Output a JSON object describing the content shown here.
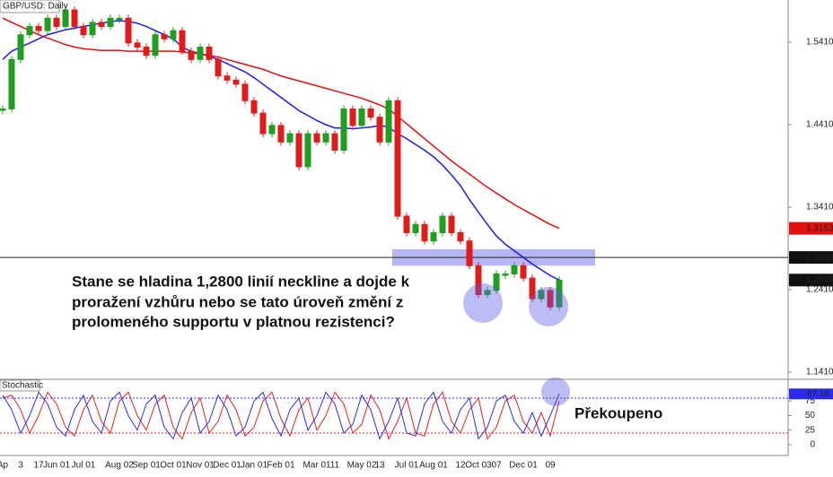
{
  "chart_data": [
    {
      "type": "candlestick",
      "title": "GBP/USD: Daily",
      "categories": [
        "Ap",
        null,
        "3",
        null,
        "17",
        null,
        "Jun 01",
        null,
        null,
        "Jul 01",
        null,
        null,
        null,
        "Aug 02",
        null,
        null,
        "Sep 01",
        null,
        null,
        "Oct 01",
        null,
        null,
        "Nov 01",
        null,
        null,
        "Dec 01",
        null,
        null,
        "Jan 01",
        null,
        null,
        "Feb 01",
        null,
        null,
        null,
        "Mar 01",
        null,
        "11",
        null,
        null,
        "May 02",
        null,
        "13",
        null,
        null,
        "Jul 01",
        null,
        null,
        "Aug 01",
        null,
        null,
        "12",
        null,
        "Oct 03",
        null,
        "07",
        null,
        null,
        "Dec 01",
        null,
        null,
        "09",
        null
      ],
      "series": [
        {
          "color": "#1f9e1f",
          "down_color": "#e01b1b",
          "values": [
            1.46,
            1.52,
            1.55,
            1.56,
            1.555,
            1.57,
            1.56,
            1.58,
            1.56,
            1.55,
            1.565,
            1.56,
            1.57,
            1.57,
            1.54,
            1.535,
            1.525,
            1.55,
            1.545,
            1.555,
            1.53,
            1.52,
            1.535,
            1.52,
            1.5,
            1.495,
            1.49,
            1.47,
            1.455,
            1.43,
            1.44,
            1.42,
            1.43,
            1.39,
            1.43,
            1.42,
            1.43,
            1.41,
            1.46,
            1.44,
            1.46,
            1.45,
            1.42,
            1.47,
            1.33,
            1.31,
            1.32,
            1.3,
            1.31,
            1.33,
            1.31,
            1.3,
            1.27,
            1.235,
            1.24,
            1.26,
            1.26,
            1.27,
            1.255,
            1.23,
            1.24,
            1.22,
            1.2526
          ]
        },
        {
          "color": "#1c1ce8",
          "values": [
            1.52,
            1.53,
            1.535,
            1.54,
            1.545,
            1.55,
            1.553,
            1.556,
            1.558,
            1.56,
            1.562,
            1.564,
            1.566,
            1.567,
            1.566,
            1.564,
            1.56,
            1.555,
            1.55,
            1.545,
            1.535,
            1.53,
            1.527,
            1.524,
            1.52,
            1.515,
            1.51,
            1.505,
            1.498,
            1.49,
            1.482,
            1.474,
            1.466,
            1.458,
            1.452,
            1.446,
            1.441,
            1.437,
            1.437,
            1.436,
            1.437,
            1.438,
            1.44,
            1.438,
            1.43,
            1.424,
            1.417,
            1.41,
            1.402,
            1.392,
            1.38,
            1.367,
            1.35,
            1.335,
            1.32,
            1.306,
            1.296,
            1.288,
            1.28,
            1.272,
            1.265,
            1.258,
            1.2526
          ]
        },
        {
          "color": "#e31010",
          "values": [
            1.57,
            1.565,
            1.56,
            1.555,
            1.55,
            1.546,
            1.542,
            1.538,
            1.535,
            1.533,
            1.532,
            1.531,
            1.531,
            1.531,
            1.53,
            1.53,
            1.53,
            1.53,
            1.53,
            1.53,
            1.529,
            1.528,
            1.527,
            1.525,
            1.523,
            1.52,
            1.517,
            1.514,
            1.511,
            1.508,
            1.504,
            1.5,
            1.497,
            1.494,
            1.491,
            1.488,
            1.485,
            1.482,
            1.479,
            1.476,
            1.473,
            1.469,
            1.465,
            1.46,
            1.451,
            1.442,
            1.433,
            1.424,
            1.415,
            1.406,
            1.397,
            1.389,
            1.381,
            1.373,
            1.365,
            1.358,
            1.351,
            1.344,
            1.338,
            1.332,
            1.326,
            1.32,
            1.3153
          ]
        }
      ],
      "ylim": [
        1.1334,
        1.5921
      ],
      "yticks": [
        {
          "value": 1.141,
          "label": "1.1410"
        },
        {
          "value": 1.241,
          "label": "1.2410"
        },
        {
          "value": 1.341,
          "label": "1.3410"
        },
        {
          "value": 1.441,
          "label": "1.4410"
        },
        {
          "value": 1.541,
          "label": "1.5410"
        }
      ],
      "neckline": {
        "value": 1.28,
        "label": "1.2800"
      },
      "zone": [
        1.27,
        1.29
      ],
      "annotation": [
        "Stane se hladina 1,2800 linií neckline a dojde k",
        "proražení vzhůru nebo se tato úroveň změní z",
        "prolomeného supportu v platnou rezistenci?"
      ]
    },
    {
      "type": "line",
      "title": "Stochastic",
      "series": [
        {
          "color": "#2b2bef",
          "values": [
            85,
            60,
            20,
            50,
            90,
            70,
            30,
            15,
            60,
            85,
            40,
            20,
            75,
            90,
            50,
            25,
            70,
            85,
            30,
            10,
            55,
            80,
            20,
            40,
            85,
            60,
            15,
            30,
            75,
            90,
            45,
            15,
            60,
            80,
            25,
            50,
            90,
            70,
            20,
            35,
            85,
            60,
            10,
            40,
            80,
            20,
            15,
            70,
            90,
            40,
            20,
            60,
            80,
            10,
            30,
            75,
            85,
            40,
            20,
            55,
            15,
            50,
            87.18
          ]
        },
        {
          "color": "#e52020",
          "values": [
            80,
            85,
            60,
            20,
            50,
            90,
            70,
            30,
            15,
            60,
            85,
            40,
            20,
            75,
            90,
            50,
            25,
            70,
            85,
            30,
            10,
            55,
            80,
            20,
            40,
            85,
            60,
            15,
            30,
            75,
            90,
            45,
            15,
            60,
            80,
            25,
            50,
            90,
            70,
            20,
            35,
            85,
            60,
            10,
            40,
            80,
            20,
            15,
            70,
            90,
            40,
            20,
            60,
            80,
            10,
            30,
            75,
            85,
            40,
            20,
            55,
            15,
            75
          ]
        }
      ],
      "ylim": [
        0,
        100
      ],
      "yticks": [
        0,
        25,
        50,
        75
      ],
      "levels": [
        {
          "value": 80,
          "color": "#2b2bef"
        },
        {
          "value": 20,
          "color": "#e52020"
        }
      ],
      "annotation": "Překoupeno"
    }
  ]
}
